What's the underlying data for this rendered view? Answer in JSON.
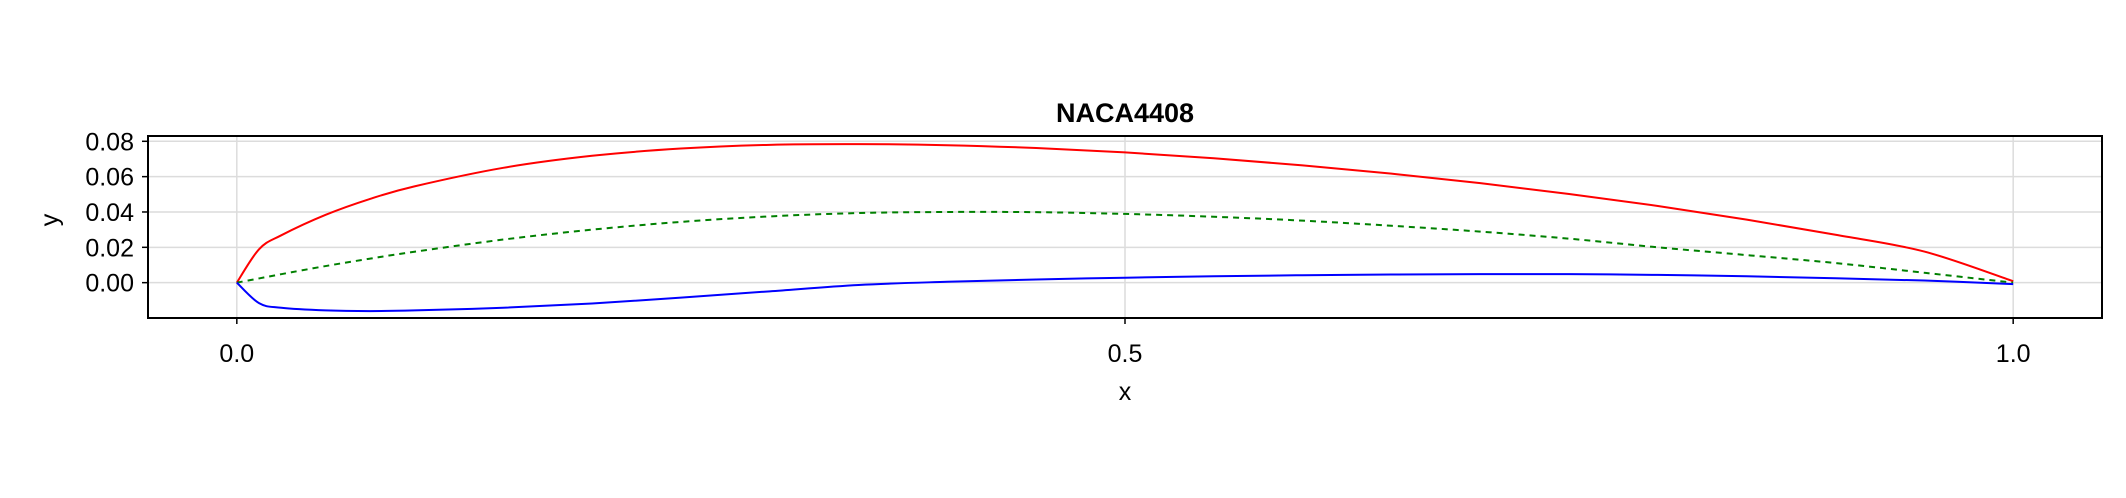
{
  "chart_data": {
    "type": "line",
    "title": "NACA4408",
    "xlabel": "x",
    "ylabel": "y",
    "xlim": [
      -0.05,
      1.05
    ],
    "ylim": [
      -0.02,
      0.083
    ],
    "xticks": [
      0.0,
      0.5,
      1.0
    ],
    "xtick_labels": [
      "0.0",
      "0.5",
      "1.0"
    ],
    "yticks": [
      0.0,
      0.02,
      0.04,
      0.06,
      0.08
    ],
    "ytick_labels": [
      "0.00",
      "0.02",
      "0.04",
      "0.06",
      "0.08"
    ],
    "grid": true,
    "series": [
      {
        "color": "#ff0000",
        "style": "solid",
        "x": [
          0.0,
          0.0125,
          0.025,
          0.05,
          0.075,
          0.1,
          0.15,
          0.2,
          0.25,
          0.3,
          0.35,
          0.4,
          0.45,
          0.5,
          0.55,
          0.6,
          0.65,
          0.7,
          0.75,
          0.8,
          0.85,
          0.9,
          0.95,
          1.0
        ],
        "y": [
          0.0,
          0.0189,
          0.0268,
          0.0384,
          0.0474,
          0.0545,
          0.065,
          0.0718,
          0.0759,
          0.078,
          0.0784,
          0.0778,
          0.0762,
          0.0737,
          0.0704,
          0.0664,
          0.0617,
          0.0563,
          0.0502,
          0.0434,
          0.0357,
          0.0271,
          0.0176,
          0.0008
        ]
      },
      {
        "color": "#008000",
        "style": "dashed",
        "x": [
          0.0,
          0.0125,
          0.025,
          0.05,
          0.075,
          0.1,
          0.15,
          0.2,
          0.25,
          0.3,
          0.35,
          0.4,
          0.45,
          0.5,
          0.55,
          0.6,
          0.65,
          0.7,
          0.75,
          0.8,
          0.85,
          0.9,
          0.95,
          1.0
        ],
        "y": [
          0.0,
          0.0024,
          0.0048,
          0.0094,
          0.0136,
          0.0175,
          0.0244,
          0.03,
          0.0344,
          0.0375,
          0.0394,
          0.04,
          0.0399,
          0.0389,
          0.0373,
          0.0351,
          0.0322,
          0.0289,
          0.0249,
          0.02,
          0.0156,
          0.0111,
          0.0056,
          0.0
        ]
      },
      {
        "color": "#0000ff",
        "style": "solid",
        "x": [
          0.0,
          0.0125,
          0.025,
          0.05,
          0.075,
          0.1,
          0.15,
          0.2,
          0.25,
          0.3,
          0.35,
          0.4,
          0.45,
          0.5,
          0.55,
          0.6,
          0.65,
          0.7,
          0.75,
          0.8,
          0.85,
          0.9,
          0.95,
          1.0
        ],
        "y": [
          0.0,
          -0.0116,
          -0.0142,
          -0.0157,
          -0.0161,
          -0.0157,
          -0.0142,
          -0.0118,
          -0.0085,
          -0.0049,
          -0.0013,
          0.0005,
          0.0018,
          0.0028,
          0.0036,
          0.0042,
          0.0046,
          0.0048,
          0.0048,
          0.0044,
          0.0036,
          0.0025,
          0.0012,
          -0.0008
        ]
      }
    ]
  }
}
